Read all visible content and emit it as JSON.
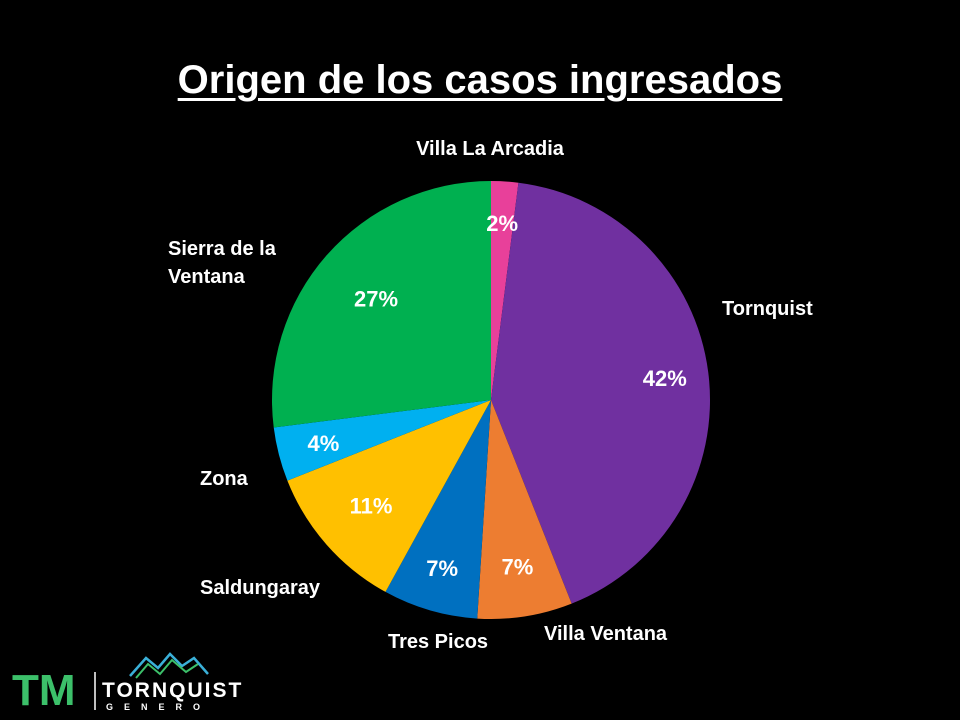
{
  "chart_data": {
    "type": "pie",
    "title": "Origen de los casos ingresados",
    "slices": [
      {
        "name": "Villa La Arcadia",
        "label": [
          "Villa La Arcadia"
        ],
        "value": 2,
        "value_label": "2%",
        "color": "#e8409a"
      },
      {
        "name": "Tornquist",
        "label": [
          "Tornquist"
        ],
        "value": 42,
        "value_label": "42%",
        "color": "#7030a0"
      },
      {
        "name": "Villa Ventana",
        "label": [
          "Villa Ventana"
        ],
        "value": 7,
        "value_label": "7%",
        "color": "#ed7d31"
      },
      {
        "name": "Tres Picos",
        "label": [
          "Tres Picos"
        ],
        "value": 7,
        "value_label": "7%",
        "color": "#0070c0"
      },
      {
        "name": "Saldungaray",
        "label": [
          "Saldungaray"
        ],
        "value": 11,
        "value_label": "11%",
        "color": "#ffc000"
      },
      {
        "name": "Zona",
        "label": [
          "Zona"
        ],
        "value": 4,
        "value_label": "4%",
        "color": "#00b0f0"
      },
      {
        "name": "Sierra de la Ventana",
        "label": [
          "Sierra de la",
          "Ventana"
        ],
        "value": 27,
        "value_label": "27%",
        "color": "#00b050"
      }
    ],
    "start": "top",
    "direction": "clockwise",
    "legend": "none"
  },
  "logo": {
    "initials": "TM",
    "name": "TORNQUIST",
    "subtitle": "GENERO",
    "color": "#3cc06a"
  }
}
